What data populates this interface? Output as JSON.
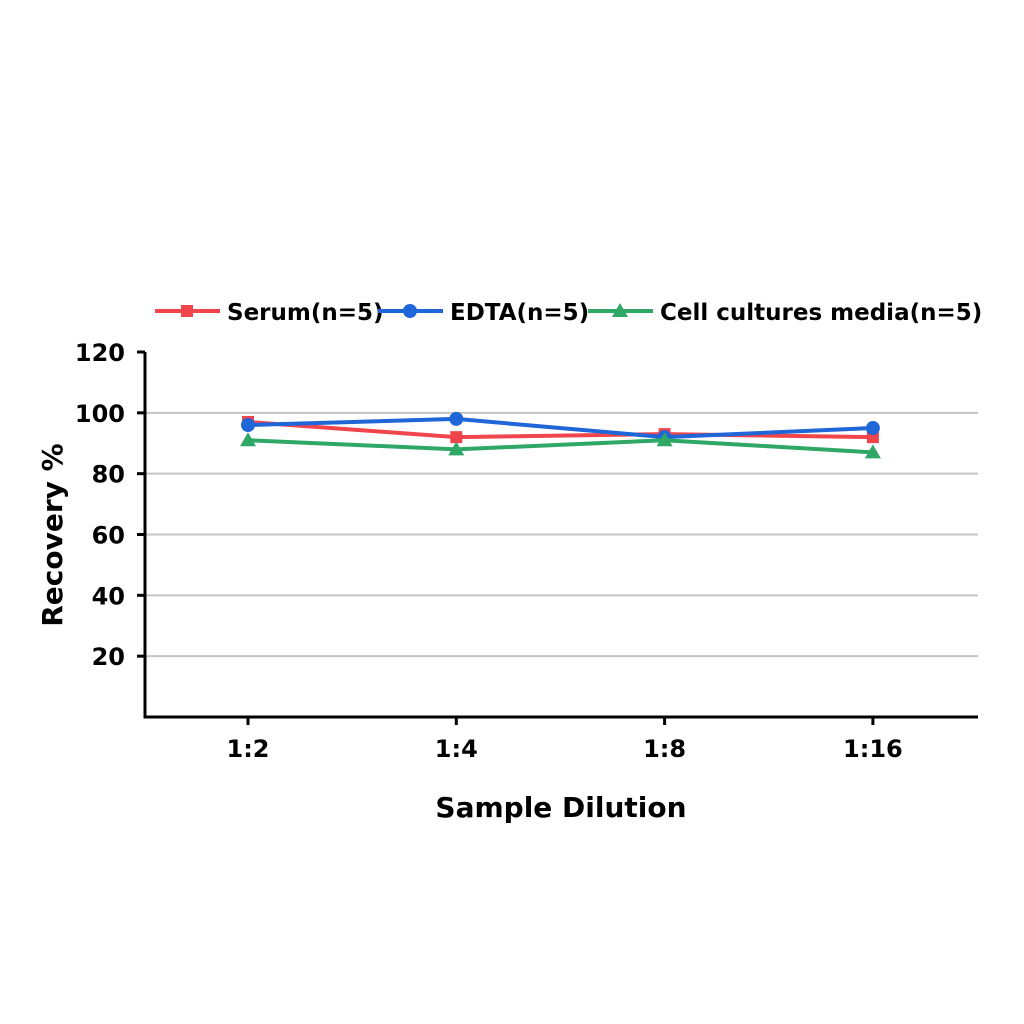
{
  "chart_data": {
    "type": "line",
    "title": "",
    "xlabel": "Sample Dilution",
    "ylabel": "Recovery %",
    "categories": [
      "1:2",
      "1:4",
      "1:8",
      "1:16"
    ],
    "ylim": [
      0,
      120
    ],
    "yticks": [
      20,
      40,
      60,
      80,
      100,
      120
    ],
    "grid": true,
    "legend_position": "top",
    "series": [
      {
        "name": "Serum(n=5)",
        "values": [
          97,
          92,
          93,
          92
        ],
        "color": "#f0454a",
        "marker": "square"
      },
      {
        "name": "EDTA(n=5)",
        "values": [
          96,
          98,
          92,
          95
        ],
        "color": "#1f66d8",
        "marker": "circle"
      },
      {
        "name": "Cell cultures media(n=5)",
        "values": [
          91,
          88,
          91,
          87
        ],
        "color": "#2fa866",
        "marker": "triangle"
      }
    ]
  }
}
